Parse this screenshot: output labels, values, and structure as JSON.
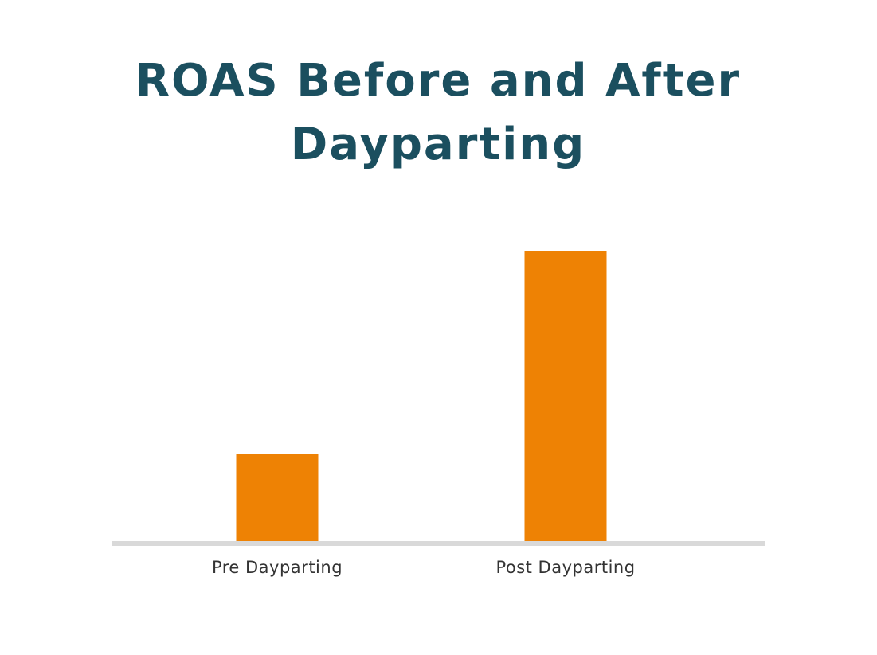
{
  "chart_data": {
    "type": "bar",
    "title": "ROAS Before and After Dayparting",
    "categories": [
      "Pre Dayparting",
      "Post Dayparting"
    ],
    "values": [
      30,
      100
    ],
    "color": "#ee8204"
  }
}
